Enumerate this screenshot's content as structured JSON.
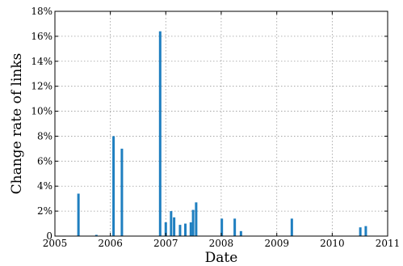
{
  "chart_data": {
    "type": "bar",
    "title": "",
    "xlabel": "Date",
    "ylabel": "Change rate of links",
    "xlim": [
      "2005-01-01",
      "2011-01-01"
    ],
    "ylim": [
      0,
      18
    ],
    "y_unit": "%",
    "grid": true,
    "color": "#1f7fc0",
    "x_ticks": [
      "2005",
      "2006",
      "2007",
      "2008",
      "2009",
      "2010",
      "2011"
    ],
    "y_ticks": [
      "0",
      "2%",
      "4%",
      "6%",
      "8%",
      "10%",
      "12%",
      "14%",
      "16%",
      "18%"
    ],
    "points": [
      {
        "date": "2005-06-05",
        "value": 3.4
      },
      {
        "date": "2005-10-01",
        "value": 0.1
      },
      {
        "date": "2006-01-22",
        "value": 8.0
      },
      {
        "date": "2006-03-18",
        "value": 7.0
      },
      {
        "date": "2006-11-25",
        "value": 16.4
      },
      {
        "date": "2007-01-01",
        "value": 1.1
      },
      {
        "date": "2007-02-05",
        "value": 2.0
      },
      {
        "date": "2007-02-25",
        "value": 1.5
      },
      {
        "date": "2007-04-05",
        "value": 0.9
      },
      {
        "date": "2007-05-10",
        "value": 1.0
      },
      {
        "date": "2007-06-15",
        "value": 1.1
      },
      {
        "date": "2007-06-30",
        "value": 2.1
      },
      {
        "date": "2007-07-20",
        "value": 2.7
      },
      {
        "date": "2008-01-05",
        "value": 1.4
      },
      {
        "date": "2008-03-30",
        "value": 1.4
      },
      {
        "date": "2008-05-10",
        "value": 0.4
      },
      {
        "date": "2009-04-10",
        "value": 1.4
      },
      {
        "date": "2010-07-05",
        "value": 0.7
      },
      {
        "date": "2010-08-10",
        "value": 0.8
      }
    ]
  }
}
